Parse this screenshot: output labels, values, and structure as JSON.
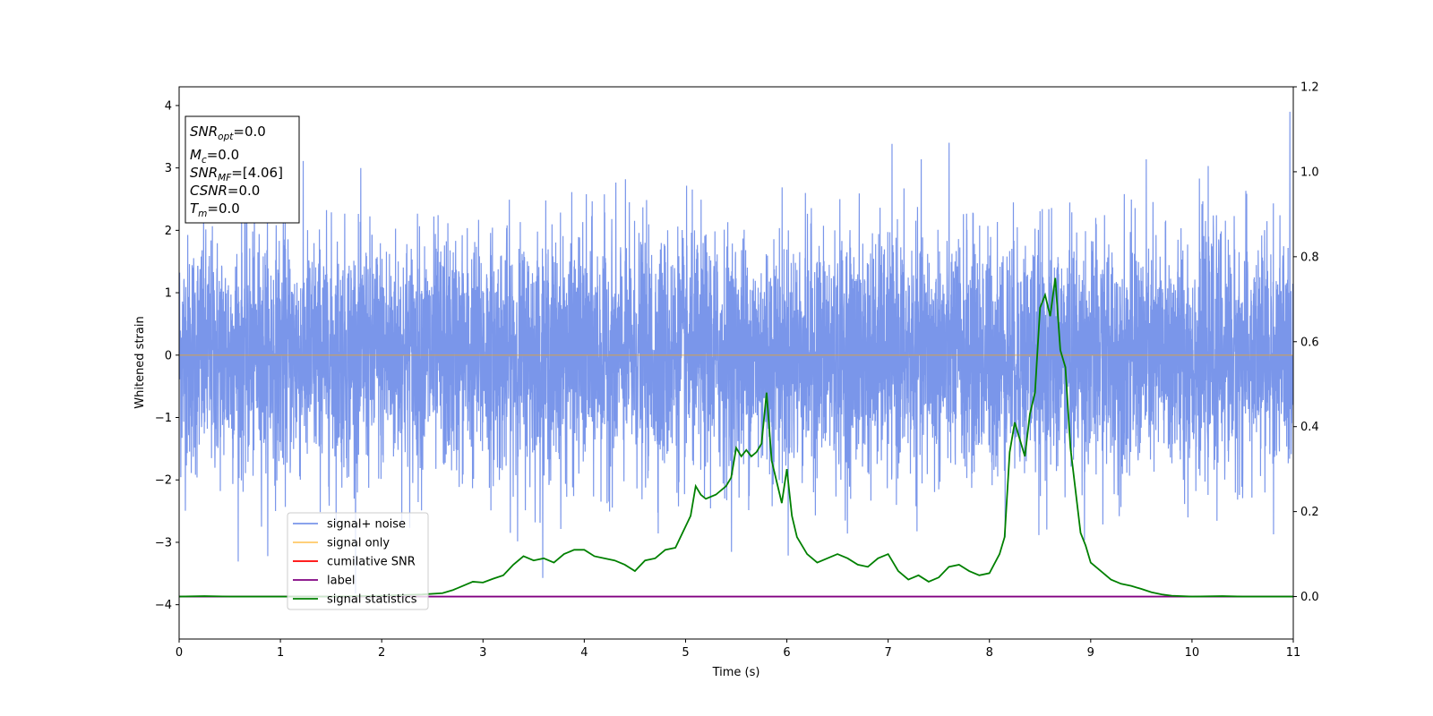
{
  "chart_data": {
    "type": "line",
    "title": "",
    "xlabel": "Time (s)",
    "ylabel": "Whitened strain",
    "ylabel_right": "",
    "xlim": [
      0,
      11
    ],
    "ylim": [
      -4.55,
      4.3
    ],
    "ylim_right": [
      -0.1,
      1.2
    ],
    "x_ticks": [
      0,
      1,
      2,
      3,
      4,
      5,
      6,
      7,
      8,
      9,
      10,
      11
    ],
    "y_ticks": [
      -4,
      -3,
      -2,
      -1,
      0,
      1,
      2,
      3,
      4
    ],
    "y_ticks_right": [
      0.0,
      0.2,
      0.4,
      0.6,
      0.8,
      1.0,
      1.2
    ],
    "y_tick_labels_right": [
      "0.0",
      "0.2",
      "0.4",
      "0.6",
      "0.8",
      "1.0",
      "1.2"
    ],
    "y_tick_labels": [
      "−4",
      "−3",
      "−2",
      "−1",
      "0",
      "1",
      "2",
      "3",
      "4"
    ],
    "grid": false,
    "legend_position": "lower-left",
    "info_box": {
      "lines": [
        {
          "main": "SNR",
          "sub": "opt",
          "rest": "=0.0"
        },
        {
          "main": "M",
          "sub": "c",
          "rest": "=0.0"
        },
        {
          "main": "SNR",
          "sub": "MF",
          "rest": "=[4.06]"
        },
        {
          "main": "CSNR",
          "sub": "",
          "rest": "=0.0"
        },
        {
          "main": "T",
          "sub": "m",
          "rest": "=0.0"
        }
      ]
    },
    "series": [
      {
        "name": "signal+ noise",
        "color": "#4169e1",
        "axis": "left",
        "kind": "noise",
        "sample_rate": 600,
        "std": 0.95,
        "x_range": [
          0,
          11
        ]
      },
      {
        "name": "signal only",
        "color": "#ffa500",
        "axis": "left",
        "x": [
          0,
          11
        ],
        "y": [
          0,
          0
        ]
      },
      {
        "name": "cumilative SNR",
        "color": "#ff0000",
        "axis": "right",
        "x": [],
        "y": []
      },
      {
        "name": "label",
        "color": "#800080",
        "axis": "right",
        "x": [
          0,
          11
        ],
        "y": [
          0,
          0
        ]
      },
      {
        "name": "signal statistics",
        "color": "#008000",
        "axis": "right",
        "x": [
          0,
          0.25,
          0.5,
          1,
          1.5,
          2,
          2.4,
          2.6,
          2.7,
          2.8,
          2.9,
          3.0,
          3.1,
          3.2,
          3.3,
          3.4,
          3.5,
          3.6,
          3.7,
          3.8,
          3.9,
          4.0,
          4.1,
          4.2,
          4.3,
          4.4,
          4.5,
          4.6,
          4.7,
          4.8,
          4.9,
          5.0,
          5.05,
          5.1,
          5.15,
          5.2,
          5.3,
          5.4,
          5.45,
          5.5,
          5.55,
          5.6,
          5.65,
          5.7,
          5.75,
          5.8,
          5.85,
          5.9,
          5.95,
          6.0,
          6.05,
          6.1,
          6.2,
          6.3,
          6.4,
          6.5,
          6.6,
          6.7,
          6.8,
          6.9,
          7.0,
          7.1,
          7.2,
          7.3,
          7.4,
          7.5,
          7.6,
          7.7,
          7.8,
          7.9,
          8.0,
          8.1,
          8.15,
          8.2,
          8.25,
          8.3,
          8.35,
          8.4,
          8.45,
          8.5,
          8.55,
          8.6,
          8.65,
          8.7,
          8.75,
          8.8,
          8.85,
          8.9,
          8.95,
          9.0,
          9.1,
          9.2,
          9.3,
          9.4,
          9.5,
          9.6,
          9.7,
          9.8,
          10.0,
          10.3,
          10.5,
          11.0
        ],
        "y": [
          0.0,
          0.001,
          0.0,
          0.0,
          0.0,
          0.002,
          0.005,
          0.008,
          0.015,
          0.025,
          0.035,
          0.033,
          0.042,
          0.05,
          0.075,
          0.095,
          0.085,
          0.09,
          0.08,
          0.1,
          0.11,
          0.11,
          0.095,
          0.09,
          0.085,
          0.075,
          0.06,
          0.085,
          0.09,
          0.11,
          0.115,
          0.165,
          0.19,
          0.26,
          0.24,
          0.23,
          0.24,
          0.26,
          0.28,
          0.35,
          0.33,
          0.345,
          0.33,
          0.34,
          0.36,
          0.48,
          0.32,
          0.27,
          0.22,
          0.3,
          0.19,
          0.14,
          0.1,
          0.08,
          0.09,
          0.1,
          0.09,
          0.075,
          0.07,
          0.09,
          0.1,
          0.06,
          0.04,
          0.05,
          0.035,
          0.045,
          0.07,
          0.075,
          0.06,
          0.05,
          0.055,
          0.1,
          0.14,
          0.34,
          0.41,
          0.37,
          0.33,
          0.43,
          0.48,
          0.68,
          0.71,
          0.66,
          0.75,
          0.58,
          0.54,
          0.35,
          0.25,
          0.15,
          0.12,
          0.08,
          0.06,
          0.04,
          0.03,
          0.025,
          0.018,
          0.01,
          0.005,
          0.002,
          0.0,
          0.001,
          0.0,
          0.0
        ]
      }
    ]
  }
}
